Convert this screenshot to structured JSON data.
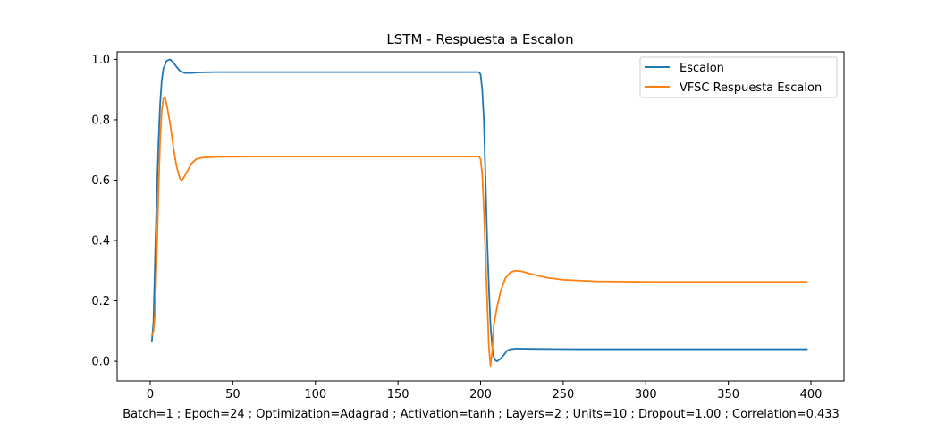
{
  "chart_data": {
    "type": "line",
    "title": "LSTM - Respuesta a Escalon",
    "xlabel": "Batch=1 ; Epoch=24 ; Optimization=Adagrad ; Activation=tanh ; Layers=2 ; Units=10 ; Dropout=1.00 ; Correlation=0.433",
    "ylabel": "",
    "xlim": [
      -20,
      420
    ],
    "ylim": [
      -0.065,
      1.025
    ],
    "xticks": [
      0,
      50,
      100,
      150,
      200,
      250,
      300,
      350,
      400
    ],
    "xtick_labels": [
      "0",
      "50",
      "100",
      "150",
      "200",
      "250",
      "300",
      "350",
      "400"
    ],
    "yticks": [
      0.0,
      0.2,
      0.4,
      0.6,
      0.8,
      1.0
    ],
    "ytick_labels": [
      "0.0",
      "0.2",
      "0.4",
      "0.6",
      "0.8",
      "1.0"
    ],
    "grid": false,
    "legend_position": "top-right",
    "series": [
      {
        "name": "Escalon",
        "color": "#1f77b4",
        "points": [
          [
            1,
            0.065
          ],
          [
            2,
            0.13
          ],
          [
            3,
            0.35
          ],
          [
            4,
            0.55
          ],
          [
            5,
            0.72
          ],
          [
            6,
            0.85
          ],
          [
            7,
            0.93
          ],
          [
            8,
            0.97
          ],
          [
            10,
            0.995
          ],
          [
            12,
            1.0
          ],
          [
            14,
            0.99
          ],
          [
            16,
            0.975
          ],
          [
            18,
            0.962
          ],
          [
            21,
            0.955
          ],
          [
            25,
            0.955
          ],
          [
            30,
            0.957
          ],
          [
            40,
            0.958
          ],
          [
            100,
            0.958
          ],
          [
            150,
            0.958
          ],
          [
            199,
            0.958
          ],
          [
            200,
            0.95
          ],
          [
            201,
            0.9
          ],
          [
            202,
            0.8
          ],
          [
            203,
            0.6
          ],
          [
            204,
            0.4
          ],
          [
            205,
            0.25
          ],
          [
            206,
            0.12
          ],
          [
            207,
            0.05
          ],
          [
            208,
            0.015
          ],
          [
            209,
            0.003
          ],
          [
            210,
            0.0
          ],
          [
            212,
            0.008
          ],
          [
            214,
            0.02
          ],
          [
            216,
            0.035
          ],
          [
            218,
            0.04
          ],
          [
            222,
            0.042
          ],
          [
            230,
            0.041
          ],
          [
            260,
            0.04
          ],
          [
            300,
            0.04
          ],
          [
            350,
            0.04
          ],
          [
            398,
            0.04
          ]
        ]
      },
      {
        "name": "VFSC Respuesta Escalon",
        "color": "#ff7f0e",
        "points": [
          [
            1,
            0.085
          ],
          [
            2,
            0.1
          ],
          [
            3,
            0.16
          ],
          [
            4,
            0.35
          ],
          [
            5,
            0.55
          ],
          [
            6,
            0.73
          ],
          [
            7,
            0.83
          ],
          [
            8,
            0.87
          ],
          [
            9,
            0.875
          ],
          [
            10,
            0.85
          ],
          [
            12,
            0.79
          ],
          [
            14,
            0.71
          ],
          [
            16,
            0.645
          ],
          [
            18,
            0.605
          ],
          [
            19,
            0.6
          ],
          [
            20,
            0.605
          ],
          [
            22,
            0.625
          ],
          [
            25,
            0.655
          ],
          [
            28,
            0.67
          ],
          [
            32,
            0.675
          ],
          [
            40,
            0.677
          ],
          [
            60,
            0.678
          ],
          [
            100,
            0.678
          ],
          [
            150,
            0.678
          ],
          [
            199,
            0.678
          ],
          [
            200,
            0.67
          ],
          [
            201,
            0.62
          ],
          [
            202,
            0.5
          ],
          [
            203,
            0.35
          ],
          [
            204,
            0.2
          ],
          [
            205,
            0.05
          ],
          [
            206,
            -0.015
          ],
          [
            207,
            0.03
          ],
          [
            208,
            0.12
          ],
          [
            210,
            0.18
          ],
          [
            212,
            0.23
          ],
          [
            215,
            0.275
          ],
          [
            218,
            0.295
          ],
          [
            221,
            0.3
          ],
          [
            225,
            0.298
          ],
          [
            230,
            0.29
          ],
          [
            240,
            0.277
          ],
          [
            250,
            0.27
          ],
          [
            270,
            0.265
          ],
          [
            300,
            0.263
          ],
          [
            350,
            0.263
          ],
          [
            398,
            0.263
          ]
        ]
      }
    ]
  }
}
